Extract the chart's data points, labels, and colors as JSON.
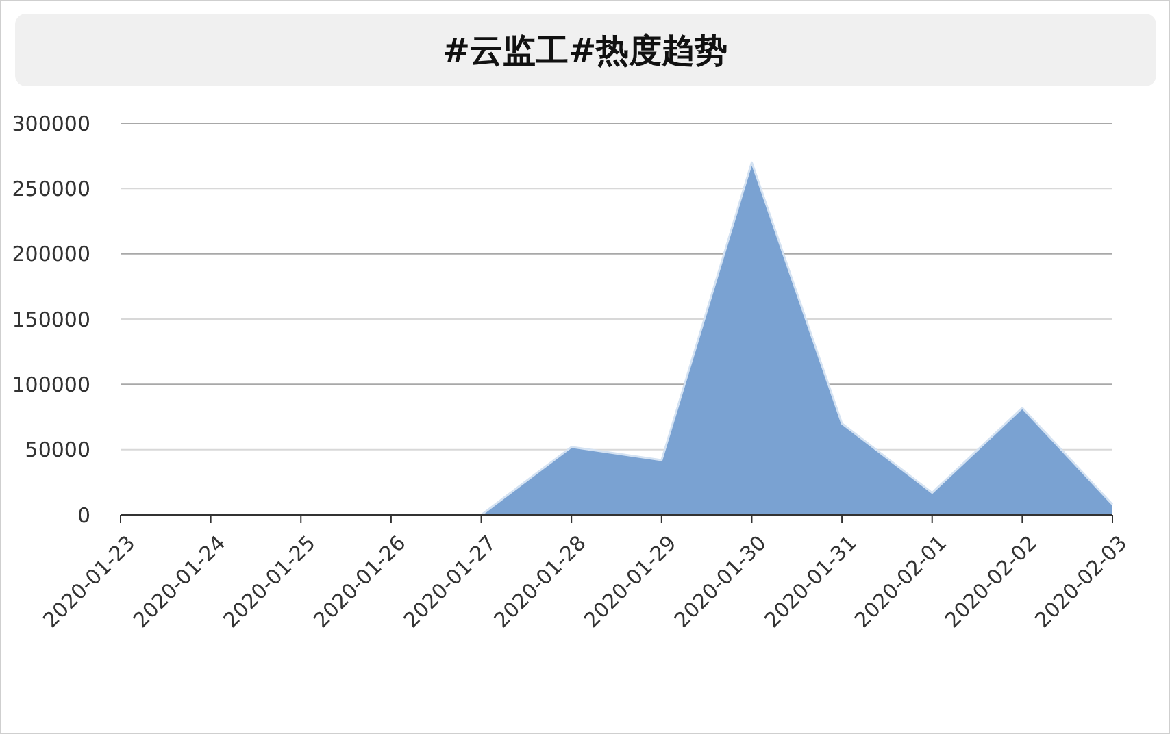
{
  "chart_data": {
    "type": "area",
    "title": "#云监工#热度趋势",
    "categories": [
      "2020-01-23",
      "2020-01-24",
      "2020-01-25",
      "2020-01-26",
      "2020-01-27",
      "2020-01-28",
      "2020-01-29",
      "2020-01-30",
      "2020-01-31",
      "2020-02-01",
      "2020-02-02",
      "2020-02-03"
    ],
    "series": [
      {
        "color": "#7aa2d2",
        "values": [
          0,
          0,
          0,
          0,
          0,
          52000,
          42000,
          270000,
          70000,
          17000,
          82000,
          8000
        ]
      }
    ],
    "ylim": [
      0,
      300000
    ],
    "yticks": [
      0,
      50000,
      100000,
      150000,
      200000,
      250000,
      300000
    ],
    "grid": "y"
  }
}
